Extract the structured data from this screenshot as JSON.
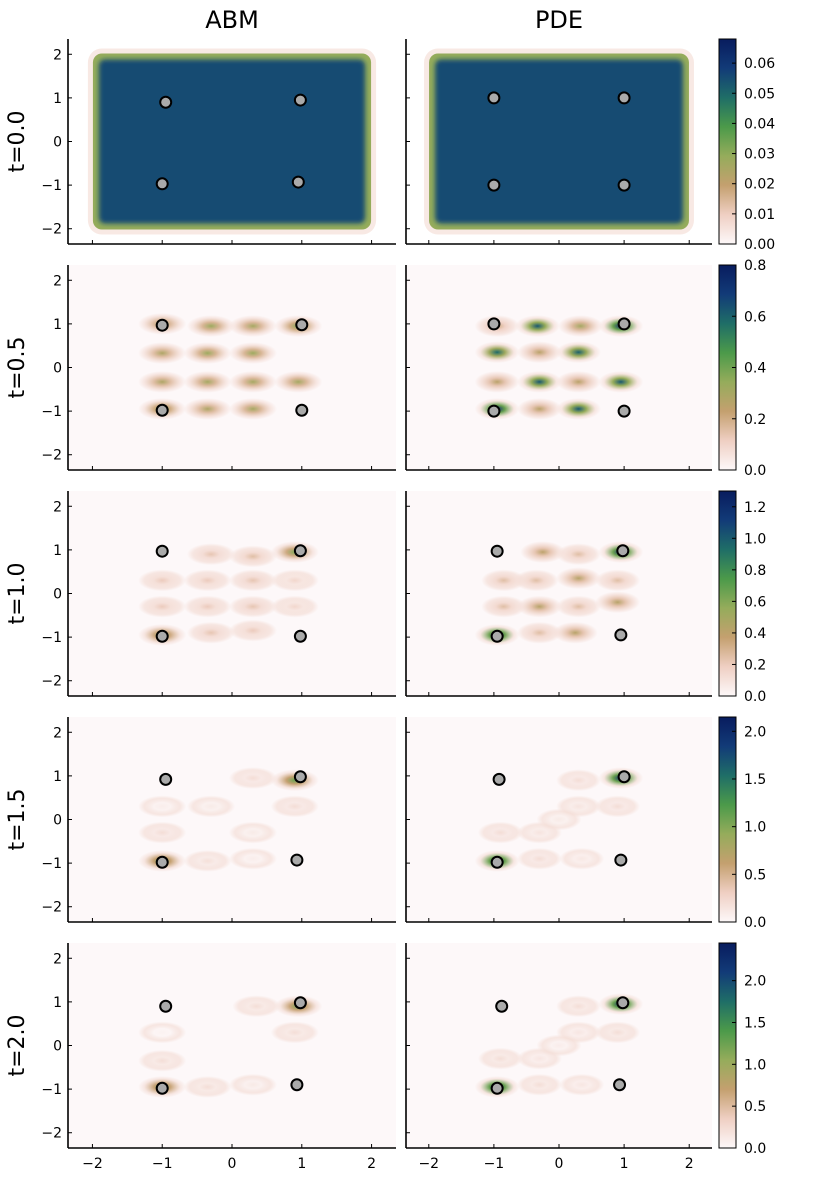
{
  "figure": {
    "col_titles": [
      "ABM",
      "PDE"
    ],
    "row_labels": [
      "t=0.0",
      "t=0.5",
      "t=1.0",
      "t=1.5",
      "t=2.0"
    ],
    "colormap": [
      "#fdf8f9",
      "#efcfc3",
      "#c4a06f",
      "#95ac5b",
      "#4c9a4a",
      "#1f6e67",
      "#123b78",
      "#081c5e"
    ]
  },
  "chart_data": {
    "type": "heatmap",
    "title": "",
    "xlabel": "",
    "ylabel": "",
    "xlim": [
      -2.35,
      2.35
    ],
    "ylim": [
      -2.35,
      2.35
    ],
    "x_ticks": [
      -2,
      -1,
      0,
      1,
      2
    ],
    "x_tick_labels": [
      "−2",
      "−1",
      "0",
      "1",
      "2"
    ],
    "y_ticks": [
      -2,
      -1,
      0,
      1,
      2
    ],
    "y_tick_labels": [
      "−2",
      "−1",
      "0",
      "1",
      "2"
    ],
    "rows": [
      {
        "label": "t=0.0",
        "colorbar": {
          "min": 0,
          "max": 0.068,
          "ticks": [
            0,
            0.01,
            0.02,
            0.03,
            0.04,
            0.05,
            0.06
          ],
          "tick_labels": [
            "0.00",
            "0.01",
            "0.02",
            "0.03",
            "0.04",
            "0.05",
            "0.06"
          ]
        },
        "abm": {
          "uniform": true,
          "level": 0.055,
          "rect": [
            -1.95,
            1.95,
            -1.95,
            1.95
          ],
          "blobs": [],
          "markers": [
            [
              -0.95,
              0.9
            ],
            [
              0.98,
              0.95
            ],
            [
              -1.0,
              -0.97
            ],
            [
              0.95,
              -0.93
            ]
          ]
        },
        "pde": {
          "uniform": true,
          "level": 0.055,
          "rect": [
            -1.95,
            1.95,
            -1.95,
            1.95
          ],
          "blobs": [],
          "markers": [
            [
              -1.0,
              1.0
            ],
            [
              1.0,
              1.0
            ],
            [
              -1.0,
              -1.0
            ],
            [
              1.0,
              -1.0
            ]
          ]
        }
      },
      {
        "label": "t=0.5",
        "colorbar": {
          "min": 0,
          "max": 0.8,
          "ticks": [
            0,
            0.2,
            0.4,
            0.6,
            0.8
          ],
          "tick_labels": [
            "0.0",
            "0.2",
            "0.4",
            "0.6",
            "0.8"
          ]
        },
        "abm": {
          "uniform": false,
          "blobs": [
            [
              -1.0,
              1.0,
              0.3
            ],
            [
              -0.3,
              0.95,
              0.32
            ],
            [
              0.3,
              0.95,
              0.3
            ],
            [
              0.95,
              0.95,
              0.36
            ],
            [
              -1.0,
              0.33,
              0.28
            ],
            [
              -0.35,
              0.33,
              0.32
            ],
            [
              0.3,
              0.33,
              0.32
            ],
            [
              -1.0,
              -0.33,
              0.28
            ],
            [
              -0.35,
              -0.33,
              0.3
            ],
            [
              0.3,
              -0.33,
              0.3
            ],
            [
              0.95,
              -0.33,
              0.3
            ],
            [
              -1.0,
              -0.95,
              0.36
            ],
            [
              -0.35,
              -0.95,
              0.28
            ],
            [
              0.3,
              -0.95,
              0.3
            ]
          ],
          "markers": [
            [
              -1.0,
              0.97
            ],
            [
              1.0,
              0.98
            ],
            [
              -1.0,
              -0.98
            ],
            [
              1.0,
              -0.98
            ]
          ]
        },
        "pde": {
          "uniform": false,
          "blobs": [
            [
              -0.95,
              0.95,
              0.2
            ],
            [
              -0.33,
              0.95,
              0.62
            ],
            [
              0.33,
              0.95,
              0.3
            ],
            [
              0.95,
              0.95,
              0.75
            ],
            [
              -0.95,
              0.35,
              0.58
            ],
            [
              -0.3,
              0.35,
              0.25
            ],
            [
              0.3,
              0.35,
              0.6
            ],
            [
              -0.95,
              -0.33,
              0.25
            ],
            [
              -0.3,
              -0.33,
              0.62
            ],
            [
              0.3,
              -0.33,
              0.25
            ],
            [
              0.95,
              -0.33,
              0.62
            ],
            [
              -0.95,
              -0.95,
              0.75
            ],
            [
              -0.3,
              -0.95,
              0.25
            ],
            [
              0.3,
              -0.95,
              0.62
            ]
          ],
          "markers": [
            [
              -1.0,
              1.0
            ],
            [
              1.0,
              1.0
            ],
            [
              -1.0,
              -1.0
            ],
            [
              1.0,
              -1.0
            ]
          ]
        }
      },
      {
        "label": "t=1.0",
        "colorbar": {
          "min": 0,
          "max": 1.3,
          "ticks": [
            0,
            0.2,
            0.4,
            0.6,
            0.8,
            1.0,
            1.2
          ],
          "tick_labels": [
            "0.0",
            "0.2",
            "0.4",
            "0.6",
            "0.8",
            "1.0",
            "1.2"
          ]
        },
        "abm": {
          "uniform": false,
          "blobs": [
            [
              0.9,
              0.95,
              0.6
            ],
            [
              -1.0,
              -0.95,
              0.6
            ],
            [
              -0.3,
              0.9,
              0.22
            ],
            [
              0.3,
              0.85,
              0.25
            ],
            [
              -1.0,
              0.3,
              0.2
            ],
            [
              -0.35,
              0.3,
              0.2
            ],
            [
              0.3,
              0.3,
              0.22
            ],
            [
              -1.0,
              -0.3,
              0.2
            ],
            [
              -0.35,
              -0.3,
              0.2
            ],
            [
              0.3,
              -0.3,
              0.22
            ],
            [
              -0.3,
              -0.9,
              0.22
            ],
            [
              0.3,
              -0.85,
              0.2
            ],
            [
              0.9,
              0.3,
              0.15
            ],
            [
              0.9,
              -0.3,
              0.15
            ]
          ],
          "markers": [
            [
              -1.0,
              0.97
            ],
            [
              0.98,
              0.98
            ],
            [
              -1.0,
              -0.98
            ],
            [
              0.98,
              -0.98
            ]
          ]
        },
        "pde": {
          "uniform": false,
          "blobs": [
            [
              0.95,
              0.95,
              1.2
            ],
            [
              -0.95,
              -0.95,
              1.2
            ],
            [
              -0.25,
              0.95,
              0.4
            ],
            [
              0.3,
              0.9,
              0.25
            ],
            [
              -0.85,
              0.3,
              0.25
            ],
            [
              -0.35,
              0.3,
              0.25
            ],
            [
              0.3,
              0.35,
              0.42
            ],
            [
              -0.85,
              -0.3,
              0.25
            ],
            [
              -0.3,
              -0.3,
              0.42
            ],
            [
              0.3,
              -0.3,
              0.25
            ],
            [
              0.9,
              -0.2,
              0.42
            ],
            [
              -0.3,
              -0.9,
              0.25
            ],
            [
              0.25,
              -0.9,
              0.42
            ],
            [
              0.9,
              0.3,
              0.25
            ]
          ],
          "markers": [
            [
              -0.95,
              0.97
            ],
            [
              0.98,
              0.98
            ],
            [
              -0.95,
              -0.98
            ],
            [
              0.95,
              -0.95
            ]
          ]
        }
      },
      {
        "label": "t=1.5",
        "colorbar": {
          "min": 0,
          "max": 2.15,
          "ticks": [
            0,
            0.5,
            1.0,
            1.5,
            2.0
          ],
          "tick_labels": [
            "0.0",
            "0.5",
            "1.0",
            "1.5",
            "2.0"
          ]
        },
        "abm": {
          "uniform": false,
          "blobs": [
            [
              0.9,
              0.9,
              1.1
            ],
            [
              -1.0,
              -0.95,
              1.1
            ],
            [
              0.3,
              0.95,
              0.2
            ],
            [
              0.9,
              0.3,
              0.2
            ],
            [
              -1.0,
              -0.3,
              0.2
            ],
            [
              -0.35,
              -0.95,
              0.18
            ],
            [
              -0.3,
              0.3,
              0.1
            ],
            [
              0.3,
              -0.3,
              0.1
            ],
            [
              -1.0,
              0.3,
              0.08
            ],
            [
              0.3,
              -0.9,
              0.08
            ]
          ],
          "markers": [
            [
              -0.95,
              0.92
            ],
            [
              0.98,
              0.98
            ],
            [
              -1.0,
              -0.98
            ],
            [
              0.93,
              -0.93
            ]
          ]
        },
        "pde": {
          "uniform": false,
          "blobs": [
            [
              0.95,
              0.95,
              2.0
            ],
            [
              -0.95,
              -0.95,
              2.0
            ],
            [
              0.3,
              0.9,
              0.2
            ],
            [
              0.9,
              0.3,
              0.2
            ],
            [
              -0.9,
              -0.3,
              0.2
            ],
            [
              -0.3,
              -0.9,
              0.2
            ],
            [
              -0.3,
              -0.3,
              0.15
            ],
            [
              0.3,
              0.3,
              0.15
            ],
            [
              0.0,
              0.0,
              0.1
            ],
            [
              0.35,
              -0.9,
              0.12
            ]
          ],
          "markers": [
            [
              -0.92,
              0.92
            ],
            [
              1.0,
              0.98
            ],
            [
              -0.95,
              -0.98
            ],
            [
              0.95,
              -0.93
            ]
          ]
        }
      },
      {
        "label": "t=2.0",
        "colorbar": {
          "min": 0,
          "max": 2.45,
          "ticks": [
            0,
            0.5,
            1.0,
            1.5,
            2.0
          ],
          "tick_labels": [
            "0.0",
            "0.5",
            "1.0",
            "1.5",
            "2.0"
          ]
        },
        "abm": {
          "uniform": false,
          "blobs": [
            [
              0.95,
              0.9,
              1.2
            ],
            [
              -1.0,
              -0.95,
              1.2
            ],
            [
              0.35,
              0.9,
              0.22
            ],
            [
              0.9,
              0.3,
              0.22
            ],
            [
              -1.0,
              -0.35,
              0.22
            ],
            [
              -0.35,
              -0.95,
              0.22
            ],
            [
              0.3,
              -0.9,
              0.12
            ],
            [
              -1.0,
              0.3,
              0.05
            ]
          ],
          "markers": [
            [
              -0.95,
              0.9
            ],
            [
              0.98,
              0.98
            ],
            [
              -1.0,
              -0.98
            ],
            [
              0.93,
              -0.9
            ]
          ]
        },
        "pde": {
          "uniform": false,
          "blobs": [
            [
              0.95,
              0.95,
              2.3
            ],
            [
              -0.95,
              -0.95,
              2.3
            ],
            [
              0.3,
              0.9,
              0.22
            ],
            [
              0.9,
              0.3,
              0.22
            ],
            [
              -0.9,
              -0.3,
              0.22
            ],
            [
              -0.3,
              -0.9,
              0.22
            ],
            [
              0.3,
              0.3,
              0.15
            ],
            [
              -0.3,
              -0.3,
              0.15
            ],
            [
              0.0,
              0.0,
              0.1
            ],
            [
              0.35,
              -0.9,
              0.15
            ]
          ],
          "markers": [
            [
              -0.88,
              0.9
            ],
            [
              0.98,
              0.98
            ],
            [
              -0.95,
              -0.98
            ],
            [
              0.93,
              -0.9
            ]
          ]
        }
      }
    ]
  }
}
